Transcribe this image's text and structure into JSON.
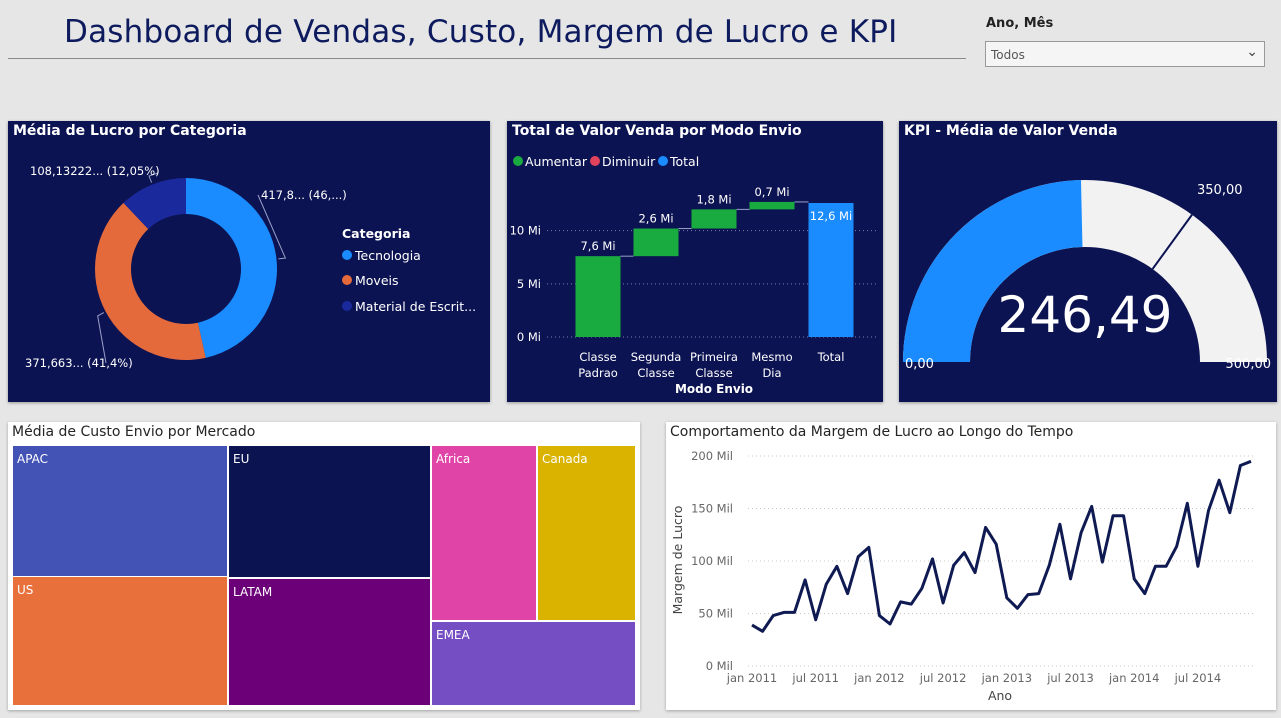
{
  "header": {
    "title": "Dashboard de Vendas, Custo, Margem de Lucro e KPI",
    "slicer_label": "Ano, Mês",
    "slicer_value": "Todos"
  },
  "donut": {
    "title": "Média de Lucro por Categoria",
    "legend_title": "Categoria",
    "chart_data": {
      "type": "pie",
      "title": "Média de Lucro por Categoria",
      "legend_title": "Categoria",
      "legend_position": "right",
      "slices": [
        {
          "name": "Tecnologia",
          "value": 46.5,
          "label": "417,8... (46,...)",
          "color": "#1a8cff"
        },
        {
          "name": "Moveis",
          "value": 41.4,
          "label": "371,663... (41,4%)",
          "color": "#e56a3b"
        },
        {
          "name": "Material de Escrit...",
          "value": 12.05,
          "label": "108,13222... (12,05%)",
          "color": "#1a2a9c"
        }
      ]
    }
  },
  "waterfall": {
    "title": "Total de Valor Venda por Modo Envio",
    "legend": [
      {
        "label": "Aumentar",
        "color": "#1aab40"
      },
      {
        "label": "Diminuir",
        "color": "#e0435b"
      },
      {
        "label": "Total",
        "color": "#1a8cff"
      }
    ],
    "chart_data": {
      "type": "bar",
      "subtype": "waterfall",
      "title": "Total de Valor Venda por Modo Envio",
      "xlabel": "Modo Envio",
      "ylabel": "",
      "categories": [
        "Classe Padrao",
        "Segunda Classe",
        "Primeira Classe",
        "Mesmo Dia",
        "Total"
      ],
      "values": [
        7.6,
        2.6,
        1.8,
        0.7,
        12.6
      ],
      "labels": [
        "7,6 Mi",
        "2,6 Mi",
        "1,8 Mi",
        "0,7 Mi",
        "12,6 Mi"
      ],
      "kinds": [
        "increase",
        "increase",
        "increase",
        "increase",
        "total"
      ],
      "yticks": [
        "0 Mi",
        "5 Mi",
        "10 Mi"
      ],
      "ytick_values": [
        0,
        5,
        10
      ],
      "ylim": [
        0,
        13.5
      ],
      "grid": true
    }
  },
  "gauge": {
    "title": "KPI - Média de Valor Venda",
    "value_text": "246,49",
    "min_text": "0,00",
    "max_text": "500,00",
    "target_text": "350,00",
    "chart_data": {
      "type": "gauge",
      "value": 246.49,
      "min": 0,
      "max": 500,
      "target": 350,
      "fill_color": "#1a8cff",
      "track_color": "#f2f2f2"
    }
  },
  "treemap": {
    "title": "Média de Custo Envio por Mercado",
    "chart_data": {
      "type": "treemap",
      "title": "Média de Custo Envio por Mercado",
      "items": [
        {
          "name": "APAC",
          "color": "#4252b5"
        },
        {
          "name": "US",
          "color": "#e8703a"
        },
        {
          "name": "EU",
          "color": "#0b1450"
        },
        {
          "name": "LATAM",
          "color": "#6b0078"
        },
        {
          "name": "Africa",
          "color": "#e044a7"
        },
        {
          "name": "Canada",
          "color": "#d9b300"
        },
        {
          "name": "EMEA",
          "color": "#744ec2"
        }
      ]
    }
  },
  "line": {
    "title": "Comportamento da Margem de Lucro ao Longo do Tempo",
    "chart_data": {
      "type": "line",
      "title": "Comportamento da Margem de Lucro ao Longo do Tempo",
      "xlabel": "Ano",
      "ylabel": "Margem de Lucro",
      "x": [
        "jan 2011",
        "fev 2011",
        "mar 2011",
        "abr 2011",
        "mai 2011",
        "jun 2011",
        "jul 2011",
        "ago 2011",
        "set 2011",
        "out 2011",
        "nov 2011",
        "dez 2011",
        "jan 2012",
        "fev 2012",
        "mar 2012",
        "abr 2012",
        "mai 2012",
        "jun 2012",
        "jul 2012",
        "ago 2012",
        "set 2012",
        "out 2012",
        "nov 2012",
        "dez 2012",
        "jan 2013",
        "fev 2013",
        "mar 2013",
        "abr 2013",
        "mai 2013",
        "jun 2013",
        "jul 2013",
        "ago 2013",
        "set 2013",
        "out 2013",
        "nov 2013",
        "dez 2013",
        "jan 2014",
        "fev 2014",
        "mar 2014",
        "abr 2014",
        "mai 2014",
        "jun 2014",
        "jul 2014",
        "ago 2014",
        "set 2014",
        "out 2014",
        "nov 2014",
        "dez 2014"
      ],
      "xticks": [
        "jan 2011",
        "jul 2011",
        "jan 2012",
        "jul 2012",
        "jan 2013",
        "jul 2013",
        "jan 2014",
        "jul 2014"
      ],
      "xtick_index": [
        0,
        6,
        12,
        18,
        24,
        30,
        36,
        42
      ],
      "series": [
        {
          "values": [
            39,
            33,
            48,
            51,
            51,
            82,
            44,
            78,
            95,
            69,
            104,
            113,
            48,
            40,
            61,
            59,
            74,
            102,
            60,
            96,
            108,
            89,
            132,
            116,
            65,
            55,
            68,
            69,
            96,
            135,
            83,
            127,
            152,
            99,
            143,
            143,
            83,
            69,
            95,
            95,
            114,
            155,
            95,
            148,
            177,
            146,
            191,
            195
          ],
          "color": "#0f1a52"
        }
      ],
      "yticks": [
        "0 Mil",
        "50 Mil",
        "100 Mil",
        "150 Mil",
        "200 Mil"
      ],
      "ytick_values": [
        0,
        50,
        100,
        150,
        200
      ],
      "ylim": [
        0,
        200
      ],
      "grid": true
    }
  }
}
